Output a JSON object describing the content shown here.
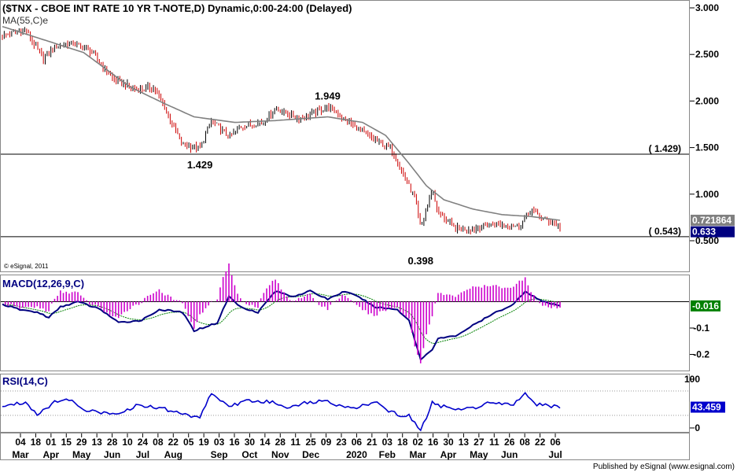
{
  "title": "($TNX - CBOE INT RATE 10 YR T-NOTE,D) Dynamic,0:00-24:00 (Delayed)",
  "copyright": "© eSignal, 2011",
  "published": "Published by eSignal (www.esignal.com)",
  "colors": {
    "up": "#000000",
    "down": "#cc0000",
    "ma": "#808080",
    "macd": "#000080",
    "signal": "#008000",
    "hist": "#cc00cc",
    "rsi": "#0000cc",
    "tag_price": "#000080",
    "tag_ma": "#808080",
    "tag_macd": "#008000",
    "tag_rsi": "#0000cc"
  },
  "chart_data": [
    {
      "type": "line",
      "name": "price",
      "title": "($TNX - CBOE INT RATE 10 YR T-NOTE,D) Dynamic,0:00-24:00 (Delayed)",
      "series_label": "MA(55,C)e",
      "ylim": [
        0.4,
        3.0
      ],
      "yticks": [
        3.0,
        2.5,
        2.0,
        1.5,
        1.0,
        0.5
      ],
      "ytick_labels": [
        "3.000",
        "2.500",
        "2.000",
        "1.500",
        "1.000",
        "0.500"
      ],
      "x_day_labels": [
        "04",
        "18",
        "01",
        "15",
        "29",
        "13",
        "28",
        "10",
        "24",
        "08",
        "22",
        "05",
        "19",
        "03",
        "16",
        "30",
        "14",
        "28",
        "11",
        "25",
        "09",
        "23",
        "06",
        "21",
        "03",
        "18",
        "02",
        "16",
        "30",
        "13",
        "27",
        "11",
        "26",
        "08",
        "22",
        "06"
      ],
      "x_month_labels": [
        "Mar",
        "Apr",
        "May",
        "Jun",
        "Jul",
        "Aug",
        "Sep",
        "Oct",
        "Nov",
        "Dec",
        "2020",
        "Feb",
        "Mar",
        "Apr",
        "May",
        "Jun",
        "Jul"
      ],
      "x_month_label_at": [
        0,
        2,
        4,
        6,
        8,
        10,
        13,
        15,
        17,
        19,
        22,
        24,
        26,
        28,
        30,
        32,
        35
      ],
      "close_path": [
        [
          0,
          2.7
        ],
        [
          4,
          2.76
        ],
        [
          7,
          2.45
        ],
        [
          9,
          2.58
        ],
        [
          12,
          2.62
        ],
        [
          15,
          2.55
        ],
        [
          19,
          2.24
        ],
        [
          23,
          2.12
        ],
        [
          26,
          2.15
        ],
        [
          28,
          1.92
        ],
        [
          31,
          1.53
        ],
        [
          34,
          1.49
        ],
        [
          36,
          1.79
        ],
        [
          39,
          1.61
        ],
        [
          41,
          1.72
        ],
        [
          45,
          1.78
        ],
        [
          47,
          1.92
        ],
        [
          51,
          1.81
        ],
        [
          54,
          1.88
        ],
        [
          56,
          1.94
        ],
        [
          59,
          1.8
        ],
        [
          63,
          1.62
        ],
        [
          67,
          1.48
        ],
        [
          71,
          0.95
        ],
        [
          72,
          0.63
        ],
        [
          74,
          1.06
        ],
        [
          75,
          0.8
        ],
        [
          78,
          0.63
        ],
        [
          81,
          0.63
        ],
        [
          85,
          0.68
        ],
        [
          89,
          0.66
        ],
        [
          91,
          0.84
        ],
        [
          93,
          0.74
        ],
        [
          95,
          0.69
        ],
        [
          96,
          0.64
        ]
      ],
      "ma_path": [
        [
          0,
          2.8
        ],
        [
          9,
          2.62
        ],
        [
          14,
          2.52
        ],
        [
          22,
          2.15
        ],
        [
          28,
          1.97
        ],
        [
          33,
          1.83
        ],
        [
          40,
          1.77
        ],
        [
          47,
          1.79
        ],
        [
          56,
          1.83
        ],
        [
          62,
          1.77
        ],
        [
          66,
          1.63
        ],
        [
          70,
          1.33
        ],
        [
          73,
          1.09
        ],
        [
          76,
          0.94
        ],
        [
          81,
          0.84
        ],
        [
          86,
          0.78
        ],
        [
          91,
          0.76
        ],
        [
          96,
          0.72
        ]
      ],
      "bars": 300,
      "horizontal_levels": [
        1.429,
        0.543
      ],
      "level_labels": [
        "( 1.429)",
        "( 0.543)"
      ],
      "annotations": [
        {
          "text": "1.429",
          "x": 34,
          "y": 1.429
        },
        {
          "text": "1.949",
          "x": 56,
          "y": 1.949
        },
        {
          "text": "0.398",
          "x": 72,
          "y": 0.398
        }
      ],
      "last_values": [
        {
          "label": "0.721864",
          "value": 0.72
        },
        {
          "label": "0.633",
          "value": 0.63
        }
      ]
    },
    {
      "type": "line",
      "name": "macd",
      "title": "MACD(12,26,9,C)",
      "ylim": [
        -0.26,
        0.1
      ],
      "yticks": [
        -0.1,
        -0.2
      ],
      "ytick_labels": [
        "-0.1",
        "-0.2"
      ],
      "zero_line": 0,
      "series": [
        "MACD",
        "Signal",
        "Histogram"
      ],
      "macd_path": [
        [
          0,
          -0.01
        ],
        [
          3,
          -0.03
        ],
        [
          6,
          -0.04
        ],
        [
          8,
          -0.06
        ],
        [
          10,
          -0.02
        ],
        [
          13,
          0.0
        ],
        [
          17,
          -0.03
        ],
        [
          20,
          -0.08
        ],
        [
          24,
          -0.07
        ],
        [
          27,
          -0.03
        ],
        [
          31,
          -0.04
        ],
        [
          33,
          -0.11
        ],
        [
          37,
          -0.08
        ],
        [
          39,
          0.02
        ],
        [
          41,
          -0.02
        ],
        [
          44,
          -0.04
        ],
        [
          47,
          0.04
        ],
        [
          50,
          0.02
        ],
        [
          53,
          0.04
        ],
        [
          56,
          0.01
        ],
        [
          59,
          0.04
        ],
        [
          62,
          0.01
        ],
        [
          64,
          -0.02
        ],
        [
          68,
          -0.03
        ],
        [
          70,
          -0.07
        ],
        [
          72,
          -0.22
        ],
        [
          74,
          -0.18
        ],
        [
          75,
          -0.14
        ],
        [
          78,
          -0.13
        ],
        [
          81,
          -0.09
        ],
        [
          85,
          -0.04
        ],
        [
          88,
          -0.01
        ],
        [
          90,
          0.04
        ],
        [
          93,
          0.0
        ],
        [
          96,
          -0.016
        ]
      ],
      "last_value": {
        "label": "-0.016",
        "value": -0.016
      }
    },
    {
      "type": "line",
      "name": "rsi",
      "title": "RSI(14,C)",
      "ylim": [
        0,
        100
      ],
      "yticks": [
        100,
        0
      ],
      "ytick_labels": [
        "100",
        "0"
      ],
      "bands": [
        70,
        30
      ],
      "rsi_path": [
        [
          0,
          45
        ],
        [
          4,
          52
        ],
        [
          6,
          32
        ],
        [
          9,
          52
        ],
        [
          12,
          56
        ],
        [
          14,
          40
        ],
        [
          17,
          33
        ],
        [
          21,
          36
        ],
        [
          23,
          46
        ],
        [
          27,
          43
        ],
        [
          31,
          32
        ],
        [
          34,
          27
        ],
        [
          36,
          67
        ],
        [
          39,
          44
        ],
        [
          42,
          54
        ],
        [
          46,
          52
        ],
        [
          49,
          44
        ],
        [
          52,
          50
        ],
        [
          55,
          54
        ],
        [
          58,
          47
        ],
        [
          61,
          42
        ],
        [
          64,
          52
        ],
        [
          66,
          40
        ],
        [
          69,
          27
        ],
        [
          70,
          30
        ],
        [
          72,
          5
        ],
        [
          74,
          50
        ],
        [
          76,
          44
        ],
        [
          78,
          40
        ],
        [
          81,
          42
        ],
        [
          84,
          52
        ],
        [
          88,
          49
        ],
        [
          90,
          66
        ],
        [
          92,
          48
        ],
        [
          96,
          43
        ]
      ],
      "last_value": {
        "label": "43.459",
        "value": 43.459
      }
    }
  ]
}
